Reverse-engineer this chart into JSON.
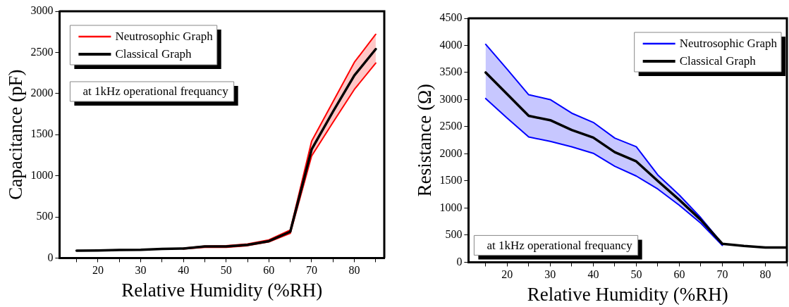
{
  "chart_data": [
    {
      "type": "line",
      "xlabel": "Relative Humidity (%RH)",
      "ylabel": "Capacitance (pF)",
      "x": [
        15,
        20,
        25,
        30,
        35,
        40,
        45,
        50,
        55,
        60,
        65,
        70,
        75,
        80,
        85
      ],
      "xlim": [
        11,
        87
      ],
      "xticks": [
        {
          "value": 15,
          "label": null
        },
        20,
        {
          "value": 25,
          "label": null
        },
        30,
        {
          "value": 35,
          "label": null
        },
        40,
        {
          "value": 45,
          "label": null
        },
        50,
        {
          "value": 55,
          "label": null
        },
        60,
        {
          "value": 65,
          "label": null
        },
        70,
        {
          "value": 75,
          "label": null
        },
        80,
        {
          "value": 85,
          "label": null
        }
      ],
      "ylim": [
        0,
        3000
      ],
      "yticks": [
        0,
        500,
        1000,
        1500,
        2000,
        2500,
        3000
      ],
      "grid": false,
      "legend": "top left",
      "marker": "none",
      "line_style": "solid",
      "annotations": [
        "at 1kHz operational frequancy"
      ],
      "series": [
        {
          "name": "Neutrosophic Graph",
          "color": "#ff0000",
          "values": [
            null,
            null,
            null,
            null,
            null,
            120,
            145,
            150,
            170,
            220,
            340,
            1420,
            1900,
            2380,
            2720
          ],
          "lower": [
            null,
            null,
            null,
            null,
            null,
            110,
            130,
            130,
            150,
            195,
            300,
            1240,
            1650,
            2050,
            2370
          ],
          "upper": [
            null,
            null,
            null,
            null,
            null,
            120,
            145,
            150,
            170,
            220,
            340,
            1420,
            1900,
            2380,
            2720
          ]
        },
        {
          "color": "#ff0000",
          "values": [
            null,
            null,
            null,
            null,
            null,
            110,
            130,
            130,
            150,
            195,
            300,
            1240,
            1650,
            2050,
            2370
          ]
        },
        {
          "name": "Classical Graph",
          "color": "#000000",
          "values": [
            90,
            92,
            97,
            100,
            110,
            115,
            140,
            140,
            160,
            205,
            320,
            1320,
            1780,
            2220,
            2540
          ]
        }
      ]
    },
    {
      "type": "line",
      "xlabel": "Relative Humidity (%RH)",
      "ylabel": "Resistance (Ω)",
      "x": [
        15,
        20,
        25,
        30,
        35,
        40,
        45,
        50,
        55,
        60,
        65,
        70,
        75,
        80,
        85
      ],
      "xlim": [
        11,
        85
      ],
      "xticks": [
        {
          "value": 15,
          "label": null
        },
        20,
        {
          "value": 25,
          "label": null
        },
        30,
        {
          "value": 35,
          "label": null
        },
        40,
        {
          "value": 45,
          "label": null
        },
        50,
        {
          "value": 55,
          "label": null
        },
        60,
        {
          "value": 65,
          "label": null
        },
        70,
        {
          "value": 75,
          "label": null
        },
        80,
        {
          "value": 85,
          "label": null
        }
      ],
      "ylim": [
        0,
        4500
      ],
      "yticks": [
        0,
        500,
        1000,
        1500,
        2000,
        2500,
        3000,
        3500,
        4000,
        4500
      ],
      "grid": false,
      "legend": "top right",
      "marker": "none",
      "line_style": "solid",
      "annotations": [
        "at 1kHz operational frequancy"
      ],
      "series": [
        {
          "name": "Neutrosophic Graph",
          "color": "#0000ff",
          "values": [
            4020,
            3560,
            3090,
            3000,
            2750,
            2580,
            2290,
            2130,
            1610,
            1240,
            820,
            340,
            null,
            null,
            null
          ],
          "lower": [
            3020,
            2660,
            2310,
            2230,
            2130,
            2010,
            1770,
            1590,
            1350,
            1050,
            720,
            310,
            null,
            null,
            null
          ],
          "upper": [
            4020,
            3560,
            3090,
            3000,
            2750,
            2580,
            2290,
            2130,
            1610,
            1240,
            820,
            340,
            null,
            null,
            null
          ]
        },
        {
          "color": "#0000ff",
          "values": [
            3020,
            2660,
            2310,
            2230,
            2130,
            2010,
            1770,
            1590,
            1350,
            1050,
            720,
            310,
            null,
            null,
            null
          ]
        },
        {
          "name": "Classical Graph",
          "color": "#000000",
          "values": [
            3500,
            3100,
            2700,
            2620,
            2440,
            2300,
            2030,
            1860,
            1500,
            1150,
            780,
            340,
            300,
            270,
            270
          ]
        }
      ]
    }
  ]
}
